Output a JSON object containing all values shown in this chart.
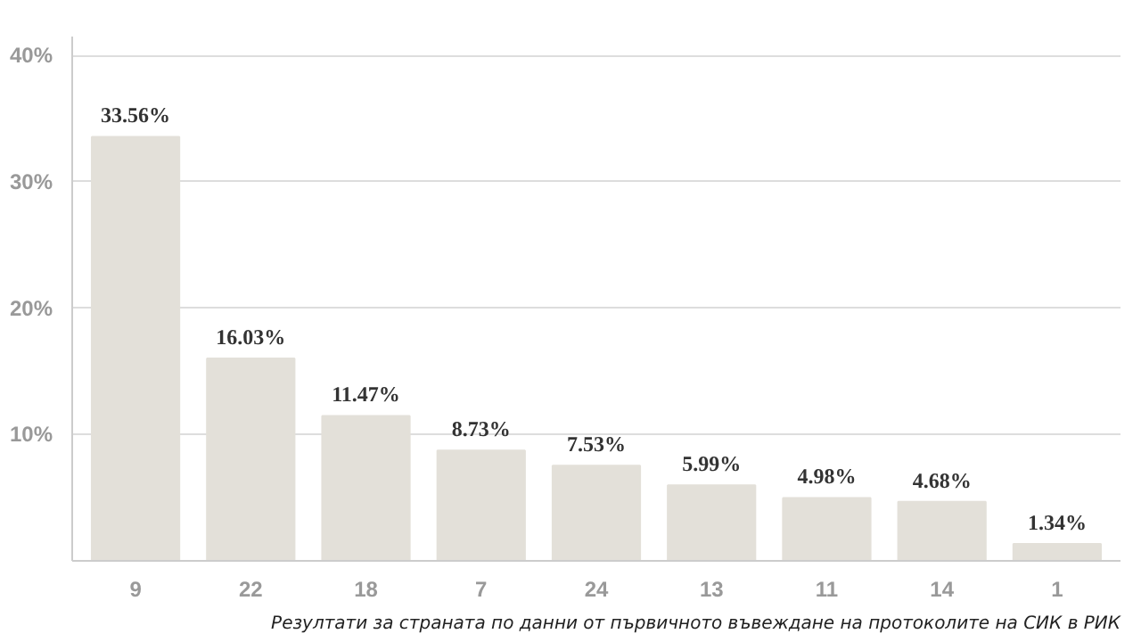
{
  "chart_data": {
    "type": "bar",
    "categories": [
      "9",
      "22",
      "18",
      "7",
      "24",
      "13",
      "11",
      "14",
      "1"
    ],
    "values": [
      33.56,
      16.03,
      11.47,
      8.73,
      7.53,
      5.99,
      4.98,
      4.68,
      1.34
    ],
    "value_labels": [
      "33.56%",
      "16.03%",
      "11.47%",
      "8.73%",
      "7.53%",
      "5.99%",
      "4.98%",
      "4.68%",
      "1.34%"
    ],
    "color": "#e3e0d9",
    "ylim": [
      0,
      41.5
    ],
    "yticks": [
      {
        "value": 10,
        "label": "10%"
      },
      {
        "value": 20,
        "label": "20%"
      },
      {
        "value": 30,
        "label": "30%"
      },
      {
        "value": 40,
        "label": "40%"
      }
    ],
    "grid": "y",
    "annotations": [
      "Резултати за страната по данни от първичното въвеждане на протоколите на СИК в РИК"
    ]
  }
}
